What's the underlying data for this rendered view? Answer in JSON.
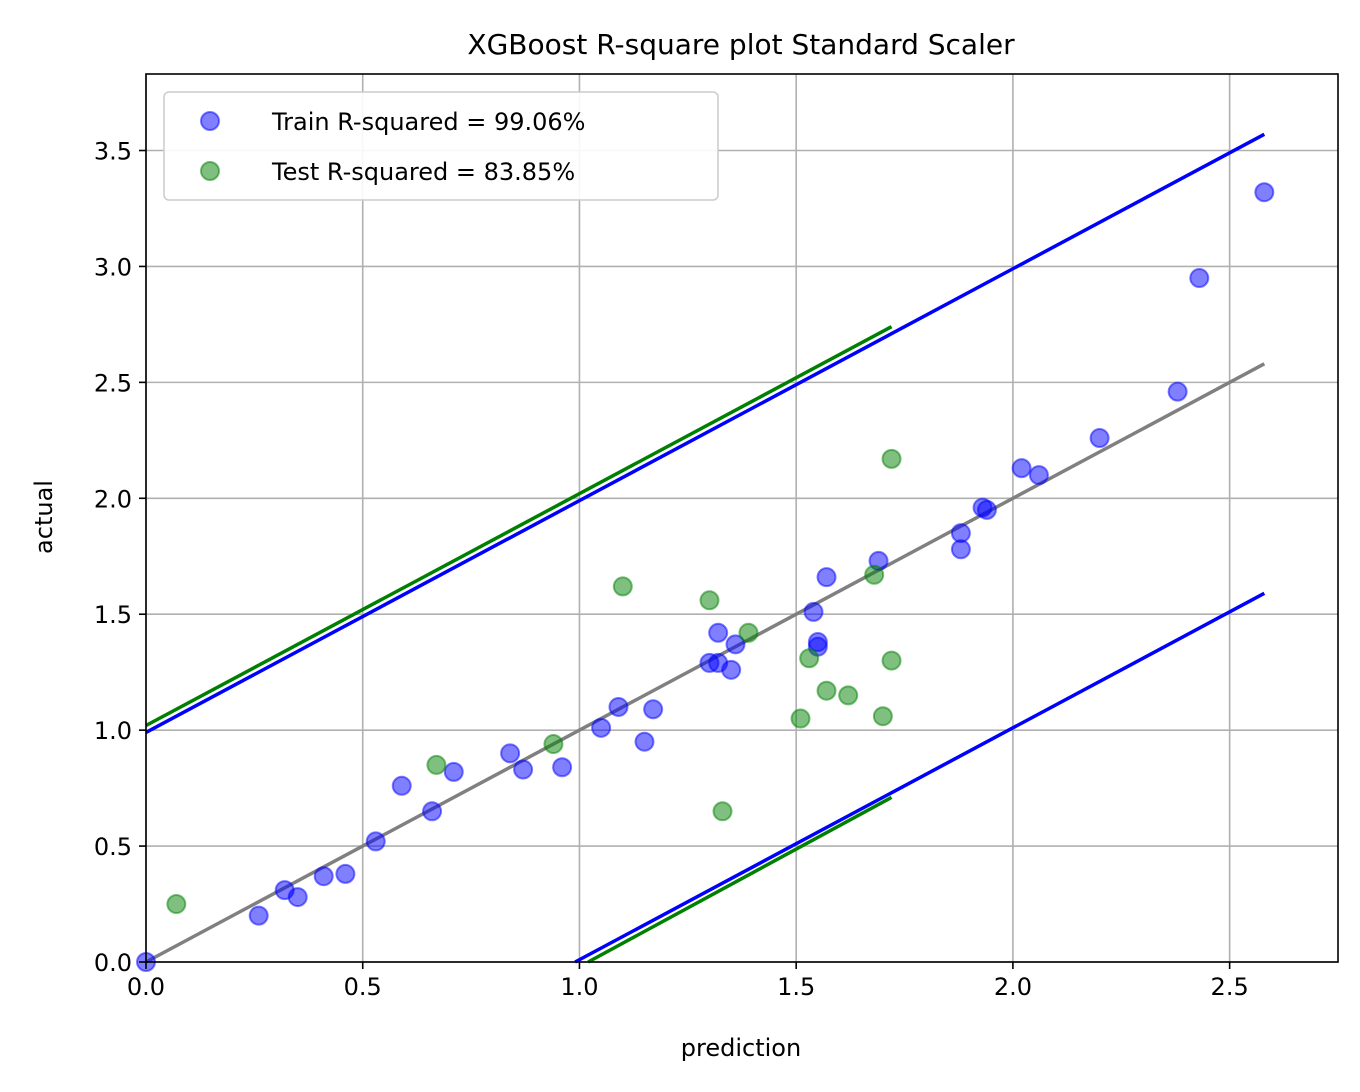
{
  "chart_data": {
    "type": "scatter",
    "title": "XGBoost R-square plot Standard Scaler",
    "xlabel": "prediction",
    "ylabel": "actual",
    "xlim": [
      0,
      2.75
    ],
    "ylim": [
      0,
      3.83
    ],
    "xticks": [
      0.0,
      0.5,
      1.0,
      1.5,
      2.0,
      2.5
    ],
    "xtick_labels": [
      "0.0",
      "0.5",
      "1.0",
      "1.5",
      "2.0",
      "2.5"
    ],
    "yticks": [
      0.0,
      0.5,
      1.0,
      1.5,
      2.0,
      2.5,
      3.0,
      3.5
    ],
    "ytick_labels": [
      "0.0",
      "0.5",
      "1.0",
      "1.5",
      "2.0",
      "2.5",
      "3.0",
      "3.5"
    ],
    "grid": true,
    "legend_position": "upper-left",
    "series": [
      {
        "name": "Train R-squared = 99.06%",
        "color": "#0000ff",
        "points": [
          [
            0.0,
            0.0
          ],
          [
            0.26,
            0.2
          ],
          [
            0.32,
            0.31
          ],
          [
            0.35,
            0.28
          ],
          [
            0.41,
            0.37
          ],
          [
            0.46,
            0.38
          ],
          [
            0.53,
            0.52
          ],
          [
            0.59,
            0.76
          ],
          [
            0.66,
            0.65
          ],
          [
            0.71,
            0.82
          ],
          [
            0.84,
            0.9
          ],
          [
            0.87,
            0.83
          ],
          [
            0.96,
            0.84
          ],
          [
            1.05,
            1.01
          ],
          [
            1.09,
            1.1
          ],
          [
            1.15,
            0.95
          ],
          [
            1.17,
            1.09
          ],
          [
            1.3,
            1.29
          ],
          [
            1.32,
            1.29
          ],
          [
            1.32,
            1.42
          ],
          [
            1.35,
            1.26
          ],
          [
            1.36,
            1.37
          ],
          [
            1.54,
            1.51
          ],
          [
            1.55,
            1.38
          ],
          [
            1.55,
            1.36
          ],
          [
            1.57,
            1.66
          ],
          [
            1.69,
            1.73
          ],
          [
            1.88,
            1.78
          ],
          [
            1.88,
            1.85
          ],
          [
            1.93,
            1.96
          ],
          [
            1.94,
            1.95
          ],
          [
            2.02,
            2.13
          ],
          [
            2.06,
            2.1
          ],
          [
            2.2,
            2.26
          ],
          [
            2.38,
            2.46
          ],
          [
            2.43,
            2.95
          ],
          [
            2.58,
            3.32
          ]
        ]
      },
      {
        "name": "Test R-squared = 83.85%",
        "color": "#008000",
        "points": [
          [
            0.07,
            0.25
          ],
          [
            0.67,
            0.85
          ],
          [
            0.94,
            0.94
          ],
          [
            1.1,
            1.62
          ],
          [
            1.3,
            1.56
          ],
          [
            1.33,
            0.65
          ],
          [
            1.39,
            1.42
          ],
          [
            1.51,
            1.05
          ],
          [
            1.53,
            1.31
          ],
          [
            1.57,
            1.17
          ],
          [
            1.62,
            1.15
          ],
          [
            1.68,
            1.67
          ],
          [
            1.7,
            1.06
          ],
          [
            1.72,
            1.3
          ],
          [
            1.72,
            2.17
          ]
        ]
      }
    ],
    "lines": [
      {
        "color": "#808080",
        "x": [
          0.0,
          2.58
        ],
        "y": [
          0.0,
          2.58
        ]
      },
      {
        "color": "#0000ff",
        "x": [
          0.0,
          2.58
        ],
        "y": [
          0.99,
          3.57
        ]
      },
      {
        "color": "#008000",
        "x": [
          0.0,
          1.72
        ],
        "y": [
          1.02,
          2.74
        ]
      },
      {
        "color": "#0000ff",
        "x": [
          0.99,
          2.58
        ],
        "y": [
          0.0,
          1.59
        ]
      },
      {
        "color": "#008000",
        "x": [
          1.02,
          1.72
        ],
        "y": [
          0.0,
          0.71
        ]
      }
    ]
  }
}
